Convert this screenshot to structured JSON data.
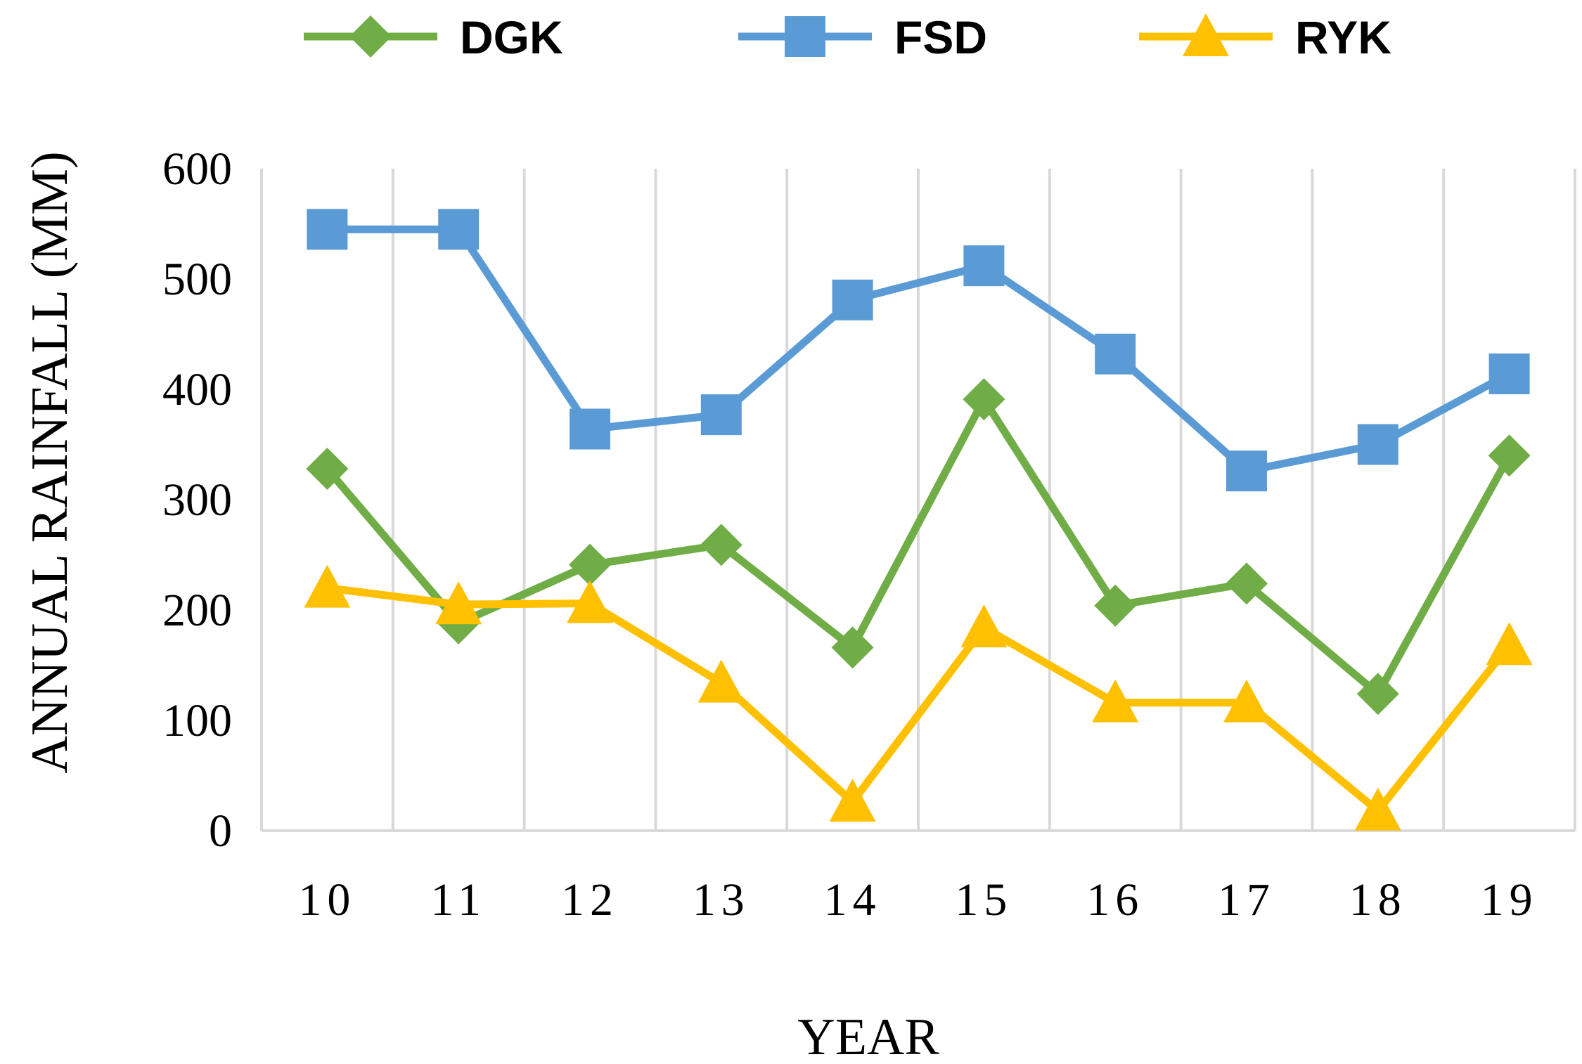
{
  "chart_data": {
    "type": "line",
    "title": "",
    "xlabel": "YEAR",
    "ylabel": "ANNUAL RAINFALL (MM)",
    "categories": [
      "10",
      "11",
      "12",
      "13",
      "14",
      "15",
      "16",
      "17",
      "18",
      "19"
    ],
    "ylim": [
      0,
      600
    ],
    "yticks": [
      "0",
      "100",
      "200",
      "300",
      "400",
      "500",
      "600"
    ],
    "grid": "vertical",
    "legend_position": "top",
    "series": [
      {
        "name": "DGK",
        "color": "#70ad47",
        "marker": "diamond",
        "values": [
          328,
          188,
          241,
          259,
          166,
          391,
          204,
          224,
          124,
          340
        ]
      },
      {
        "name": "FSD",
        "color": "#5b9bd5",
        "marker": "square",
        "values": [
          545,
          545,
          364,
          377,
          481,
          512,
          432,
          326,
          350,
          414
        ]
      },
      {
        "name": "RYK",
        "color": "#ffc000",
        "marker": "triangle",
        "values": [
          220,
          205,
          206,
          134,
          26,
          184,
          116,
          116,
          18,
          168
        ]
      }
    ]
  }
}
